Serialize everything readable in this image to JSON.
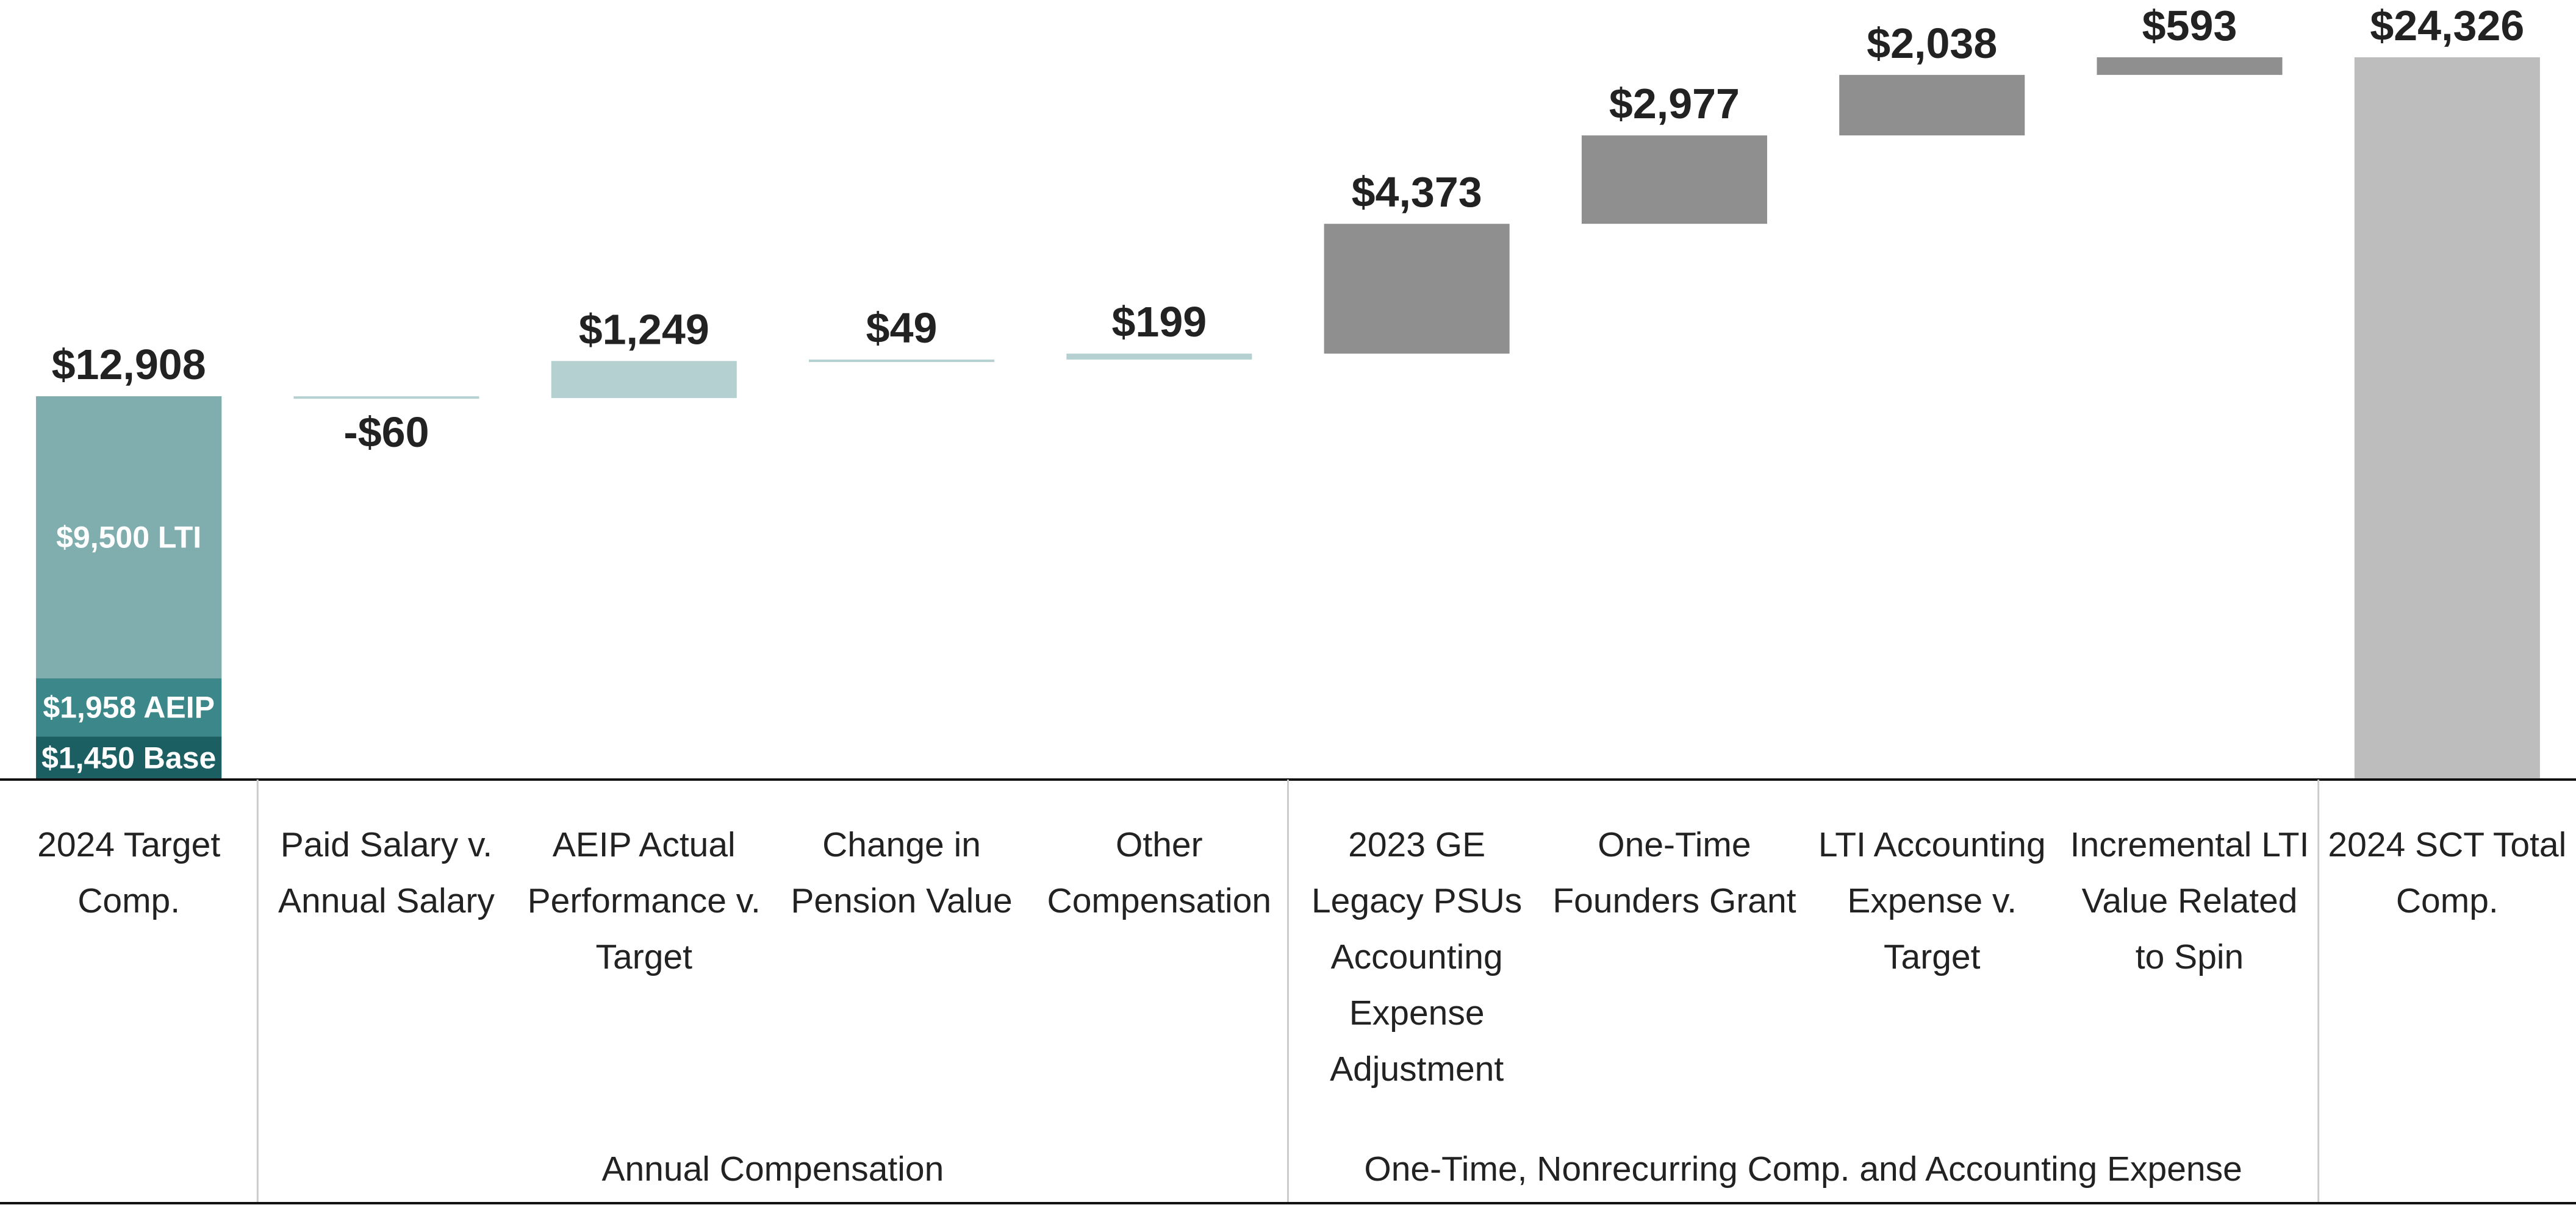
{
  "chart_data": {
    "type": "waterfall",
    "categories": [
      "2024 Target Comp.",
      "Paid Salary v. Annual Salary",
      "AEIP Actual Performance v. Target",
      "Change in Pension Value",
      "Other Compensation",
      "2023 GE Legacy PSUs Accounting Expense Adjustment",
      "One-Time Founders Grant",
      "LTI Accounting Expense v. Target",
      "Incremental LTI Value Related to Spin",
      "2024 SCT Total Comp."
    ],
    "values": [
      12908,
      -60,
      1249,
      49,
      199,
      4373,
      2977,
      2038,
      593,
      24326
    ],
    "value_labels": [
      "$12,908",
      "-$60",
      "$1,249",
      "$49",
      "$199",
      "$4,373",
      "$2,977",
      "$2,038",
      "$593",
      "$24,326"
    ],
    "colors": [
      "#80adad",
      "#b4d0d1",
      "#b4d0d1",
      "#b4d0d1",
      "#b4d0d1",
      "#8f8f8f",
      "#8f8f8f",
      "#8f8f8f",
      "#8f8f8f",
      "#bdbdbd"
    ],
    "segments": [
      {
        "value": 1450,
        "label": "$1,450 Base",
        "color": "#1b5f63"
      },
      {
        "value": 1958,
        "label": "$1,958 AEIP",
        "color": "#3b8789"
      },
      {
        "value": 9500,
        "label": "$9,500 LTI",
        "color": "#80adad"
      }
    ],
    "groups": [
      "Annual Compensation",
      "One-Time, Nonrecurring Comp. and Accounting Expense"
    ]
  }
}
